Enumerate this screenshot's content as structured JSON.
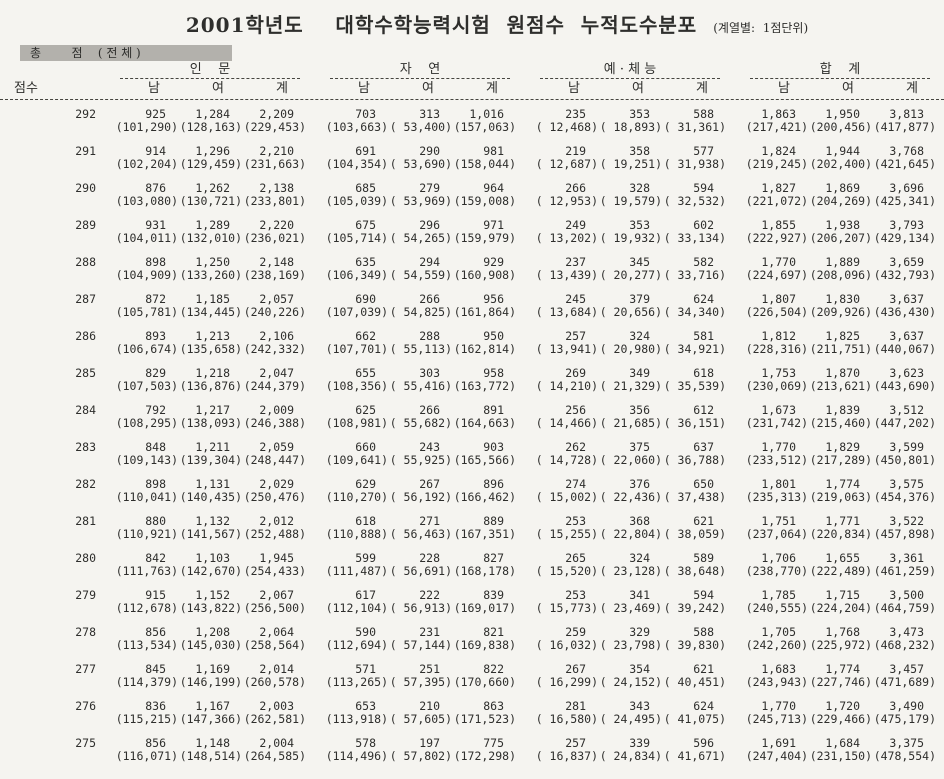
{
  "header": {
    "title": "2001학년도    대학수학능력시험  원점수  누적도수분포",
    "subtitle": "(계열별:  1점단위)",
    "band_label": "총        점    ( 전 체 )"
  },
  "colors": {
    "page_bg": "#f5f4f0",
    "band_bg": "#b3b1ac",
    "text": "#2e2e2c"
  },
  "table": {
    "score_col_label": "점수",
    "groups": [
      {
        "label": "인    문"
      },
      {
        "label": "자    연"
      },
      {
        "label": "예 · 체 능"
      },
      {
        "label": "합    계"
      }
    ],
    "sub_headers": [
      "남",
      "여",
      "계"
    ],
    "rows": [
      {
        "score": "292",
        "counts": [
          "925",
          "1,284",
          "2,209",
          "703",
          "313",
          "1,016",
          "235",
          "353",
          "588",
          "1,863",
          "1,950",
          "3,813"
        ],
        "cum": [
          "(101,290)",
          "(128,163)",
          "(229,453)",
          "(103,663)",
          "( 53,400)",
          "(157,063)",
          "( 12,468)",
          "( 18,893)",
          "( 31,361)",
          "(217,421)",
          "(200,456)",
          "(417,877)"
        ]
      },
      {
        "score": "291",
        "counts": [
          "914",
          "1,296",
          "2,210",
          "691",
          "290",
          "981",
          "219",
          "358",
          "577",
          "1,824",
          "1,944",
          "3,768"
        ],
        "cum": [
          "(102,204)",
          "(129,459)",
          "(231,663)",
          "(104,354)",
          "( 53,690)",
          "(158,044)",
          "( 12,687)",
          "( 19,251)",
          "( 31,938)",
          "(219,245)",
          "(202,400)",
          "(421,645)"
        ]
      },
      {
        "score": "290",
        "counts": [
          "876",
          "1,262",
          "2,138",
          "685",
          "279",
          "964",
          "266",
          "328",
          "594",
          "1,827",
          "1,869",
          "3,696"
        ],
        "cum": [
          "(103,080)",
          "(130,721)",
          "(233,801)",
          "(105,039)",
          "( 53,969)",
          "(159,008)",
          "( 12,953)",
          "( 19,579)",
          "( 32,532)",
          "(221,072)",
          "(204,269)",
          "(425,341)"
        ]
      },
      {
        "score": "289",
        "counts": [
          "931",
          "1,289",
          "2,220",
          "675",
          "296",
          "971",
          "249",
          "353",
          "602",
          "1,855",
          "1,938",
          "3,793"
        ],
        "cum": [
          "(104,011)",
          "(132,010)",
          "(236,021)",
          "(105,714)",
          "( 54,265)",
          "(159,979)",
          "( 13,202)",
          "( 19,932)",
          "( 33,134)",
          "(222,927)",
          "(206,207)",
          "(429,134)"
        ]
      },
      {
        "score": "288",
        "counts": [
          "898",
          "1,250",
          "2,148",
          "635",
          "294",
          "929",
          "237",
          "345",
          "582",
          "1,770",
          "1,889",
          "3,659"
        ],
        "cum": [
          "(104,909)",
          "(133,260)",
          "(238,169)",
          "(106,349)",
          "( 54,559)",
          "(160,908)",
          "( 13,439)",
          "( 20,277)",
          "( 33,716)",
          "(224,697)",
          "(208,096)",
          "(432,793)"
        ]
      },
      {
        "score": "287",
        "counts": [
          "872",
          "1,185",
          "2,057",
          "690",
          "266",
          "956",
          "245",
          "379",
          "624",
          "1,807",
          "1,830",
          "3,637"
        ],
        "cum": [
          "(105,781)",
          "(134,445)",
          "(240,226)",
          "(107,039)",
          "( 54,825)",
          "(161,864)",
          "( 13,684)",
          "( 20,656)",
          "( 34,340)",
          "(226,504)",
          "(209,926)",
          "(436,430)"
        ]
      },
      {
        "score": "286",
        "counts": [
          "893",
          "1,213",
          "2,106",
          "662",
          "288",
          "950",
          "257",
          "324",
          "581",
          "1,812",
          "1,825",
          "3,637"
        ],
        "cum": [
          "(106,674)",
          "(135,658)",
          "(242,332)",
          "(107,701)",
          "( 55,113)",
          "(162,814)",
          "( 13,941)",
          "( 20,980)",
          "( 34,921)",
          "(228,316)",
          "(211,751)",
          "(440,067)"
        ]
      },
      {
        "score": "285",
        "counts": [
          "829",
          "1,218",
          "2,047",
          "655",
          "303",
          "958",
          "269",
          "349",
          "618",
          "1,753",
          "1,870",
          "3,623"
        ],
        "cum": [
          "(107,503)",
          "(136,876)",
          "(244,379)",
          "(108,356)",
          "( 55,416)",
          "(163,772)",
          "( 14,210)",
          "( 21,329)",
          "( 35,539)",
          "(230,069)",
          "(213,621)",
          "(443,690)"
        ]
      },
      {
        "score": "284",
        "counts": [
          "792",
          "1,217",
          "2,009",
          "625",
          "266",
          "891",
          "256",
          "356",
          "612",
          "1,673",
          "1,839",
          "3,512"
        ],
        "cum": [
          "(108,295)",
          "(138,093)",
          "(246,388)",
          "(108,981)",
          "( 55,682)",
          "(164,663)",
          "( 14,466)",
          "( 21,685)",
          "( 36,151)",
          "(231,742)",
          "(215,460)",
          "(447,202)"
        ]
      },
      {
        "score": "283",
        "counts": [
          "848",
          "1,211",
          "2,059",
          "660",
          "243",
          "903",
          "262",
          "375",
          "637",
          "1,770",
          "1,829",
          "3,599"
        ],
        "cum": [
          "(109,143)",
          "(139,304)",
          "(248,447)",
          "(109,641)",
          "( 55,925)",
          "(165,566)",
          "( 14,728)",
          "( 22,060)",
          "( 36,788)",
          "(233,512)",
          "(217,289)",
          "(450,801)"
        ]
      },
      {
        "score": "282",
        "counts": [
          "898",
          "1,131",
          "2,029",
          "629",
          "267",
          "896",
          "274",
          "376",
          "650",
          "1,801",
          "1,774",
          "3,575"
        ],
        "cum": [
          "(110,041)",
          "(140,435)",
          "(250,476)",
          "(110,270)",
          "( 56,192)",
          "(166,462)",
          "( 15,002)",
          "( 22,436)",
          "( 37,438)",
          "(235,313)",
          "(219,063)",
          "(454,376)"
        ]
      },
      {
        "score": "281",
        "counts": [
          "880",
          "1,132",
          "2,012",
          "618",
          "271",
          "889",
          "253",
          "368",
          "621",
          "1,751",
          "1,771",
          "3,522"
        ],
        "cum": [
          "(110,921)",
          "(141,567)",
          "(252,488)",
          "(110,888)",
          "( 56,463)",
          "(167,351)",
          "( 15,255)",
          "( 22,804)",
          "( 38,059)",
          "(237,064)",
          "(220,834)",
          "(457,898)"
        ]
      },
      {
        "score": "280",
        "counts": [
          "842",
          "1,103",
          "1,945",
          "599",
          "228",
          "827",
          "265",
          "324",
          "589",
          "1,706",
          "1,655",
          "3,361"
        ],
        "cum": [
          "(111,763)",
          "(142,670)",
          "(254,433)",
          "(111,487)",
          "( 56,691)",
          "(168,178)",
          "( 15,520)",
          "( 23,128)",
          "( 38,648)",
          "(238,770)",
          "(222,489)",
          "(461,259)"
        ]
      },
      {
        "score": "279",
        "counts": [
          "915",
          "1,152",
          "2,067",
          "617",
          "222",
          "839",
          "253",
          "341",
          "594",
          "1,785",
          "1,715",
          "3,500"
        ],
        "cum": [
          "(112,678)",
          "(143,822)",
          "(256,500)",
          "(112,104)",
          "( 56,913)",
          "(169,017)",
          "( 15,773)",
          "( 23,469)",
          "( 39,242)",
          "(240,555)",
          "(224,204)",
          "(464,759)"
        ]
      },
      {
        "score": "278",
        "counts": [
          "856",
          "1,208",
          "2,064",
          "590",
          "231",
          "821",
          "259",
          "329",
          "588",
          "1,705",
          "1,768",
          "3,473"
        ],
        "cum": [
          "(113,534)",
          "(145,030)",
          "(258,564)",
          "(112,694)",
          "( 57,144)",
          "(169,838)",
          "( 16,032)",
          "( 23,798)",
          "( 39,830)",
          "(242,260)",
          "(225,972)",
          "(468,232)"
        ]
      },
      {
        "score": "277",
        "counts": [
          "845",
          "1,169",
          "2,014",
          "571",
          "251",
          "822",
          "267",
          "354",
          "621",
          "1,683",
          "1,774",
          "3,457"
        ],
        "cum": [
          "(114,379)",
          "(146,199)",
          "(260,578)",
          "(113,265)",
          "( 57,395)",
          "(170,660)",
          "( 16,299)",
          "( 24,152)",
          "( 40,451)",
          "(243,943)",
          "(227,746)",
          "(471,689)"
        ]
      },
      {
        "score": "276",
        "counts": [
          "836",
          "1,167",
          "2,003",
          "653",
          "210",
          "863",
          "281",
          "343",
          "624",
          "1,770",
          "1,720",
          "3,490"
        ],
        "cum": [
          "(115,215)",
          "(147,366)",
          "(262,581)",
          "(113,918)",
          "( 57,605)",
          "(171,523)",
          "( 16,580)",
          "( 24,495)",
          "( 41,075)",
          "(245,713)",
          "(229,466)",
          "(475,179)"
        ]
      },
      {
        "score": "275",
        "counts": [
          "856",
          "1,148",
          "2,004",
          "578",
          "197",
          "775",
          "257",
          "339",
          "596",
          "1,691",
          "1,684",
          "3,375"
        ],
        "cum": [
          "(116,071)",
          "(148,514)",
          "(264,585)",
          "(114,496)",
          "( 57,802)",
          "(172,298)",
          "( 16,837)",
          "( 24,834)",
          "( 41,671)",
          "(247,404)",
          "(231,150)",
          "(478,554)"
        ]
      }
    ]
  }
}
